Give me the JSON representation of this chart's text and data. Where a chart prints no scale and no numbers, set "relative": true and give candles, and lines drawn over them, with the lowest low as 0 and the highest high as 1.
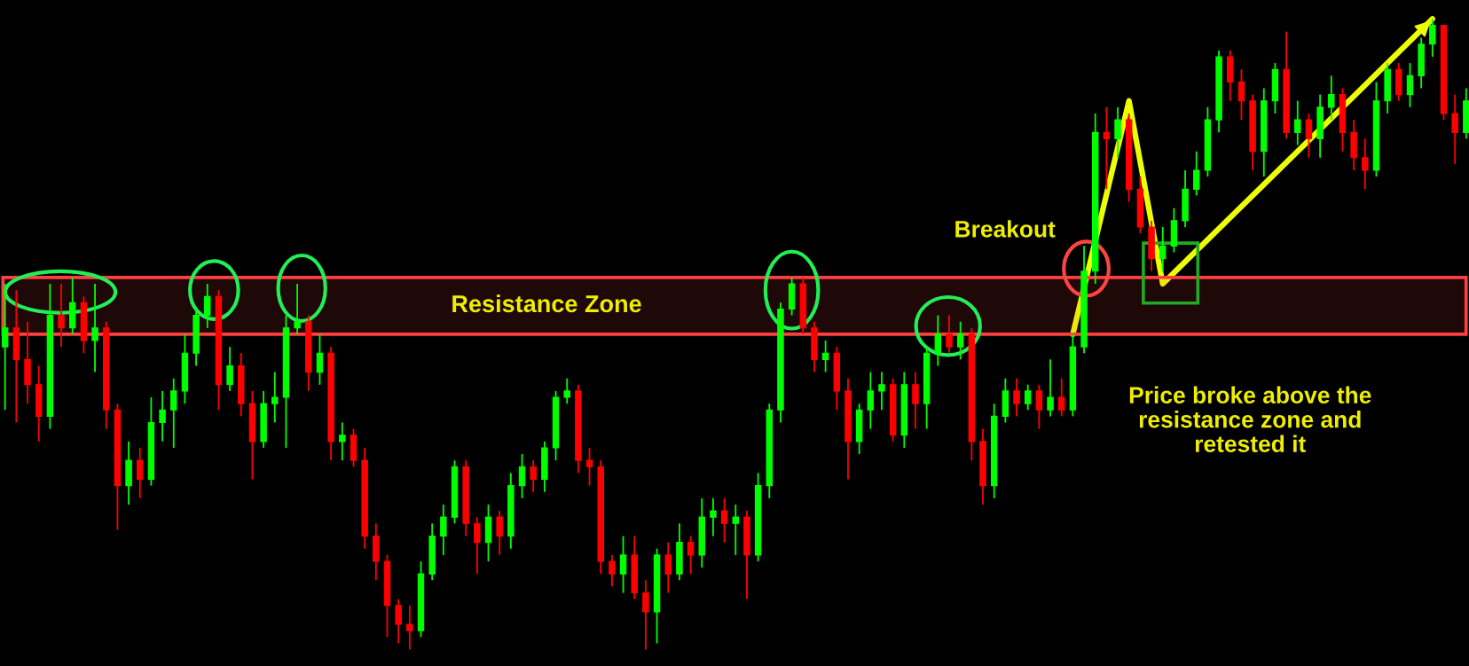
{
  "chart_data": {
    "type": "candlestick",
    "relative": true,
    "categories": [
      null,
      null,
      null,
      null,
      null,
      null,
      null,
      null,
      null,
      null,
      null,
      null,
      null,
      null,
      null,
      null,
      null,
      null,
      null,
      null,
      null,
      null,
      null,
      null,
      null,
      null,
      null,
      null,
      null,
      null,
      null,
      null,
      null,
      null,
      null,
      null,
      null,
      null,
      null,
      null,
      null,
      null,
      null,
      null,
      null,
      null,
      null,
      null,
      null,
      null,
      null,
      null,
      null,
      null,
      null,
      null,
      null,
      null,
      null,
      null,
      null,
      null,
      null,
      null,
      null,
      null,
      null,
      null,
      null,
      null,
      null,
      null,
      null,
      null,
      null,
      null,
      null,
      null,
      null,
      null,
      null,
      null,
      null,
      null,
      null,
      null,
      null,
      null,
      null,
      null,
      null,
      null,
      null,
      null,
      null,
      null,
      null,
      null,
      null,
      null,
      null,
      null,
      null,
      null,
      null,
      null,
      null,
      null,
      null,
      null,
      null,
      null,
      null,
      null,
      null,
      null,
      null,
      null,
      null,
      null,
      null,
      null,
      null,
      null,
      null,
      null,
      null,
      null,
      null,
      null,
      null
    ],
    "ohlc": [
      [
        0.48,
        0.58,
        0.38,
        0.51
      ],
      [
        0.51,
        0.57,
        0.36,
        0.46
      ],
      [
        0.46,
        0.52,
        0.39,
        0.42
      ],
      [
        0.42,
        0.45,
        0.33,
        0.37
      ],
      [
        0.37,
        0.58,
        0.35,
        0.53
      ],
      [
        0.53,
        0.58,
        0.48,
        0.51
      ],
      [
        0.51,
        0.59,
        0.5,
        0.55
      ],
      [
        0.55,
        0.56,
        0.47,
        0.49
      ],
      [
        0.49,
        0.58,
        0.44,
        0.51
      ],
      [
        0.51,
        0.52,
        0.35,
        0.38
      ],
      [
        0.38,
        0.39,
        0.19,
        0.26
      ],
      [
        0.26,
        0.33,
        0.23,
        0.3
      ],
      [
        0.3,
        0.32,
        0.24,
        0.27
      ],
      [
        0.27,
        0.4,
        0.26,
        0.36
      ],
      [
        0.36,
        0.41,
        0.33,
        0.38
      ],
      [
        0.38,
        0.43,
        0.32,
        0.41
      ],
      [
        0.41,
        0.5,
        0.39,
        0.47
      ],
      [
        0.47,
        0.54,
        0.45,
        0.53
      ],
      [
        0.53,
        0.58,
        0.51,
        0.56
      ],
      [
        0.56,
        0.57,
        0.38,
        0.42
      ],
      [
        0.42,
        0.48,
        0.41,
        0.45
      ],
      [
        0.45,
        0.47,
        0.37,
        0.39
      ],
      [
        0.39,
        0.41,
        0.27,
        0.33
      ],
      [
        0.33,
        0.41,
        0.32,
        0.39
      ],
      [
        0.39,
        0.44,
        0.36,
        0.4
      ],
      [
        0.4,
        0.53,
        0.32,
        0.51
      ],
      [
        0.51,
        0.58,
        0.5,
        0.52
      ],
      [
        0.52,
        0.53,
        0.41,
        0.44
      ],
      [
        0.44,
        0.5,
        0.42,
        0.47
      ],
      [
        0.47,
        0.48,
        0.3,
        0.33
      ],
      [
        0.33,
        0.36,
        0.3,
        0.34
      ],
      [
        0.34,
        0.35,
        0.29,
        0.3
      ],
      [
        0.3,
        0.32,
        0.16,
        0.18
      ],
      [
        0.18,
        0.2,
        0.11,
        0.14
      ],
      [
        0.14,
        0.15,
        0.02,
        0.07
      ],
      [
        0.07,
        0.08,
        0.01,
        0.04
      ],
      [
        0.04,
        0.07,
        0.0,
        0.03
      ],
      [
        0.03,
        0.14,
        0.02,
        0.12
      ],
      [
        0.12,
        0.2,
        0.11,
        0.18
      ],
      [
        0.18,
        0.23,
        0.15,
        0.21
      ],
      [
        0.21,
        0.3,
        0.2,
        0.29
      ],
      [
        0.29,
        0.3,
        0.18,
        0.2
      ],
      [
        0.2,
        0.21,
        0.12,
        0.17
      ],
      [
        0.17,
        0.23,
        0.14,
        0.21
      ],
      [
        0.21,
        0.22,
        0.15,
        0.18
      ],
      [
        0.18,
        0.28,
        0.16,
        0.26
      ],
      [
        0.26,
        0.31,
        0.24,
        0.29
      ],
      [
        0.29,
        0.3,
        0.25,
        0.27
      ],
      [
        0.27,
        0.33,
        0.25,
        0.32
      ],
      [
        0.32,
        0.41,
        0.3,
        0.4
      ],
      [
        0.4,
        0.43,
        0.39,
        0.41
      ],
      [
        0.41,
        0.42,
        0.28,
        0.3
      ],
      [
        0.3,
        0.32,
        0.26,
        0.29
      ],
      [
        0.29,
        0.3,
        0.12,
        0.14
      ],
      [
        0.14,
        0.15,
        0.1,
        0.12
      ],
      [
        0.12,
        0.18,
        0.09,
        0.15
      ],
      [
        0.15,
        0.18,
        0.08,
        0.09
      ],
      [
        0.09,
        0.11,
        0.0,
        0.06
      ],
      [
        0.06,
        0.16,
        0.01,
        0.15
      ],
      [
        0.15,
        0.17,
        0.09,
        0.12
      ],
      [
        0.12,
        0.2,
        0.11,
        0.17
      ],
      [
        0.17,
        0.18,
        0.12,
        0.15
      ],
      [
        0.15,
        0.24,
        0.13,
        0.21
      ],
      [
        0.21,
        0.24,
        0.18,
        0.22
      ],
      [
        0.22,
        0.24,
        0.17,
        0.2
      ],
      [
        0.2,
        0.23,
        0.15,
        0.21
      ],
      [
        0.21,
        0.22,
        0.08,
        0.15
      ],
      [
        0.15,
        0.28,
        0.14,
        0.26
      ],
      [
        0.26,
        0.39,
        0.24,
        0.38
      ],
      [
        0.38,
        0.55,
        0.36,
        0.54
      ],
      [
        0.54,
        0.59,
        0.53,
        0.58
      ],
      [
        0.58,
        0.59,
        0.5,
        0.51
      ],
      [
        0.51,
        0.52,
        0.44,
        0.46
      ],
      [
        0.46,
        0.49,
        0.44,
        0.47
      ],
      [
        0.47,
        0.48,
        0.38,
        0.41
      ],
      [
        0.41,
        0.43,
        0.27,
        0.33
      ],
      [
        0.33,
        0.39,
        0.31,
        0.38
      ],
      [
        0.38,
        0.44,
        0.35,
        0.41
      ],
      [
        0.41,
        0.44,
        0.38,
        0.42
      ],
      [
        0.42,
        0.43,
        0.33,
        0.34
      ],
      [
        0.34,
        0.44,
        0.32,
        0.42
      ],
      [
        0.42,
        0.44,
        0.35,
        0.39
      ],
      [
        0.39,
        0.48,
        0.35,
        0.47
      ],
      [
        0.47,
        0.53,
        0.45,
        0.5
      ],
      [
        0.5,
        0.53,
        0.47,
        0.48
      ],
      [
        0.48,
        0.52,
        0.46,
        0.5
      ],
      [
        0.5,
        0.51,
        0.3,
        0.33
      ],
      [
        0.33,
        0.35,
        0.23,
        0.26
      ],
      [
        0.26,
        0.39,
        0.24,
        0.37
      ],
      [
        0.37,
        0.43,
        0.36,
        0.41
      ],
      [
        0.41,
        0.43,
        0.37,
        0.39
      ],
      [
        0.39,
        0.42,
        0.38,
        0.41
      ],
      [
        0.41,
        0.42,
        0.35,
        0.38
      ],
      [
        0.38,
        0.46,
        0.37,
        0.4
      ],
      [
        0.4,
        0.43,
        0.37,
        0.38
      ],
      [
        0.38,
        0.5,
        0.37,
        0.48
      ],
      [
        0.48,
        0.64,
        0.47,
        0.6
      ],
      [
        0.6,
        0.85,
        0.58,
        0.82
      ],
      [
        0.82,
        0.86,
        0.73,
        0.81
      ],
      [
        0.81,
        0.86,
        0.78,
        0.84
      ],
      [
        0.84,
        0.85,
        0.71,
        0.73
      ],
      [
        0.73,
        0.75,
        0.66,
        0.67
      ],
      [
        0.67,
        0.68,
        0.6,
        0.62
      ],
      [
        0.62,
        0.67,
        0.6,
        0.64
      ],
      [
        0.64,
        0.7,
        0.63,
        0.68
      ],
      [
        0.68,
        0.76,
        0.67,
        0.73
      ],
      [
        0.73,
        0.79,
        0.72,
        0.76
      ],
      [
        0.76,
        0.86,
        0.75,
        0.84
      ],
      [
        0.84,
        0.95,
        0.82,
        0.94
      ],
      [
        0.94,
        0.95,
        0.87,
        0.9
      ],
      [
        0.9,
        0.92,
        0.84,
        0.87
      ],
      [
        0.87,
        0.88,
        0.76,
        0.79
      ],
      [
        0.79,
        0.89,
        0.75,
        0.87
      ],
      [
        0.87,
        0.93,
        0.85,
        0.92
      ],
      [
        0.92,
        0.98,
        0.81,
        0.82
      ],
      [
        0.82,
        0.87,
        0.8,
        0.84
      ],
      [
        0.84,
        0.85,
        0.78,
        0.81
      ],
      [
        0.81,
        0.88,
        0.78,
        0.86
      ],
      [
        0.86,
        0.91,
        0.84,
        0.88
      ],
      [
        0.88,
        0.89,
        0.79,
        0.82
      ],
      [
        0.82,
        0.84,
        0.76,
        0.78
      ],
      [
        0.78,
        0.81,
        0.73,
        0.76
      ],
      [
        0.76,
        0.9,
        0.75,
        0.87
      ],
      [
        0.87,
        0.93,
        0.85,
        0.92
      ],
      [
        0.92,
        0.93,
        0.87,
        0.88
      ],
      [
        0.88,
        0.93,
        0.86,
        0.91
      ],
      [
        0.91,
        0.97,
        0.89,
        0.96
      ],
      [
        0.96,
        1.0,
        0.94,
        0.99
      ],
      [
        0.99,
        0.99,
        0.84,
        0.85
      ],
      [
        0.85,
        0.88,
        0.77,
        0.82
      ],
      [
        0.82,
        0.89,
        0.81,
        0.87
      ]
    ],
    "colors": [
      "#00ff00",
      "#ff0000",
      "#ff0000",
      "#ff0000",
      "#00ff00",
      "#ff0000",
      "#00ff00",
      "#ff0000",
      "#00ff00",
      "#ff0000",
      "#ff0000",
      "#00ff00",
      "#ff0000",
      "#00ff00",
      "#00ff00",
      "#00ff00",
      "#00ff00",
      "#00ff00",
      "#00ff00",
      "#ff0000",
      "#00ff00",
      "#ff0000",
      "#ff0000",
      "#00ff00",
      "#00ff00",
      "#00ff00",
      "#00ff00",
      "#ff0000",
      "#00ff00",
      "#ff0000",
      "#00ff00",
      "#ff0000",
      "#ff0000",
      "#ff0000",
      "#ff0000",
      "#ff0000",
      "#ff0000",
      "#00ff00",
      "#00ff00",
      "#00ff00",
      "#00ff00",
      "#ff0000",
      "#ff0000",
      "#00ff00",
      "#ff0000",
      "#00ff00",
      "#00ff00",
      "#ff0000",
      "#00ff00",
      "#00ff00",
      "#00ff00",
      "#ff0000",
      "#ff0000",
      "#ff0000",
      "#ff0000",
      "#00ff00",
      "#ff0000",
      "#ff0000",
      "#00ff00",
      "#ff0000",
      "#00ff00",
      "#ff0000",
      "#00ff00",
      "#00ff00",
      "#ff0000",
      "#00ff00",
      "#ff0000",
      "#00ff00",
      "#00ff00",
      "#00ff00",
      "#00ff00",
      "#ff0000",
      "#ff0000",
      "#00ff00",
      "#ff0000",
      "#ff0000",
      "#00ff00",
      "#00ff00",
      "#00ff00",
      "#ff0000",
      "#00ff00",
      "#ff0000",
      "#00ff00",
      "#00ff00",
      "#ff0000",
      "#00ff00",
      "#ff0000",
      "#ff0000",
      "#00ff00",
      "#00ff00",
      "#ff0000",
      "#00ff00",
      "#ff0000",
      "#00ff00",
      "#ff0000",
      "#00ff00",
      "#00ff00",
      "#00ff00",
      "#ff0000",
      "#00ff00",
      "#ff0000",
      "#ff0000",
      "#ff0000",
      "#00ff00",
      "#00ff00",
      "#00ff00",
      "#00ff00",
      "#00ff00",
      "#00ff00",
      "#ff0000",
      "#ff0000",
      "#ff0000",
      "#00ff00",
      "#00ff00",
      "#ff0000",
      "#00ff00",
      "#ff0000",
      "#00ff00",
      "#00ff00",
      "#ff0000",
      "#ff0000",
      "#ff0000",
      "#00ff00",
      "#00ff00",
      "#ff0000",
      "#00ff00",
      "#00ff00",
      "#00ff00",
      "#ff0000",
      "#ff0000",
      "#00ff00"
    ],
    "series": [
      {
        "type": "line",
        "color": "#eeff00",
        "values": [
          null,
          null,
          null,
          null,
          null,
          null,
          null,
          null,
          null,
          null,
          null,
          null,
          null,
          null,
          null,
          null,
          null,
          null,
          null,
          null,
          null,
          null,
          null,
          null,
          null,
          null,
          null,
          null,
          null,
          null,
          null,
          null,
          null,
          null,
          null,
          null,
          null,
          null,
          null,
          null,
          null,
          null,
          null,
          null,
          null,
          null,
          null,
          null,
          null,
          null,
          null,
          null,
          null,
          null,
          null,
          null,
          null,
          null,
          null,
          null,
          null,
          null,
          null,
          null,
          null,
          null,
          null,
          null,
          null,
          null,
          null,
          null,
          null,
          null,
          null,
          null,
          null,
          null,
          null,
          null,
          null,
          null,
          null,
          null,
          null,
          null,
          null,
          null,
          null,
          null,
          null,
          null,
          null,
          null,
          null,
          0.5,
          null,
          null,
          null,
          null,
          0.87,
          null,
          null,
          0.58,
          null,
          null,
          null,
          null,
          null,
          null,
          null,
          null,
          null,
          null,
          null,
          null,
          null,
          null,
          null,
          null,
          null,
          null,
          null,
          null,
          null,
          null,
          null,
          1.0,
          null,
          null,
          null
        ]
      }
    ],
    "bands": [
      {
        "axis": "y",
        "from": 0.5,
        "to": 0.59,
        "label": "Resistance Zone",
        "color": "#ff4040"
      }
    ],
    "annotations": [
      "Breakout",
      "Price broke above the resistance zone and retested it"
    ]
  }
}
